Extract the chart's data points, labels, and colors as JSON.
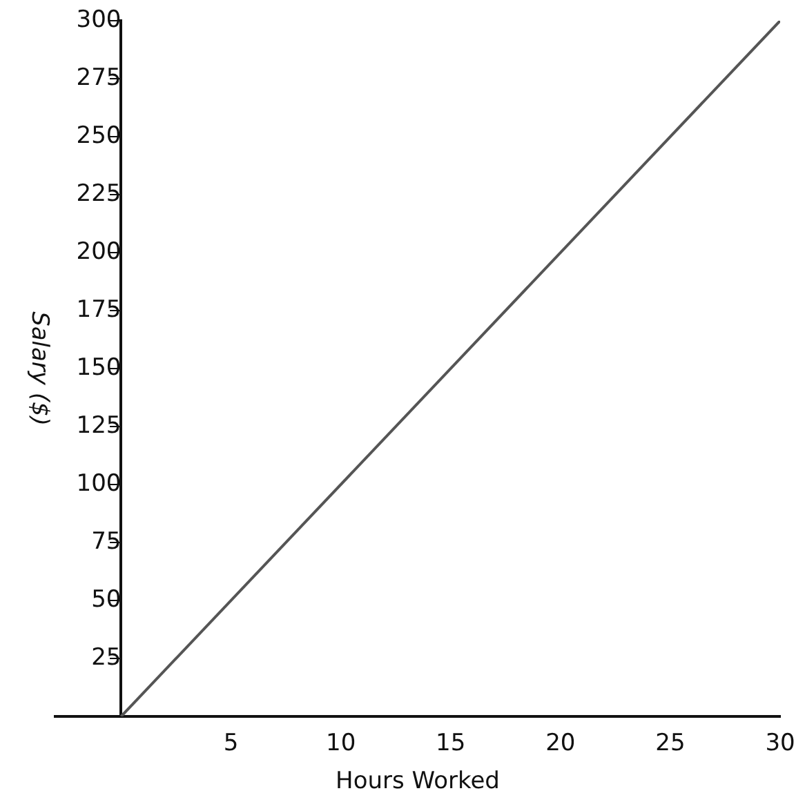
{
  "chart_data": {
    "type": "line",
    "xlabel": "Hours Worked",
    "ylabel": "Salary ($)",
    "x": [
      0,
      30
    ],
    "series": [
      {
        "color": "#555555",
        "values": [
          0,
          300
        ]
      }
    ],
    "xlim": [
      -3,
      30
    ],
    "ylim": [
      0,
      300
    ],
    "xticks": [
      5,
      10,
      15,
      20,
      25,
      30
    ],
    "yticks": [
      25,
      50,
      75,
      100,
      125,
      150,
      175,
      200,
      225,
      250,
      275,
      300
    ],
    "grid": false,
    "legend": false,
    "marker": "none",
    "line_style": "solid"
  }
}
